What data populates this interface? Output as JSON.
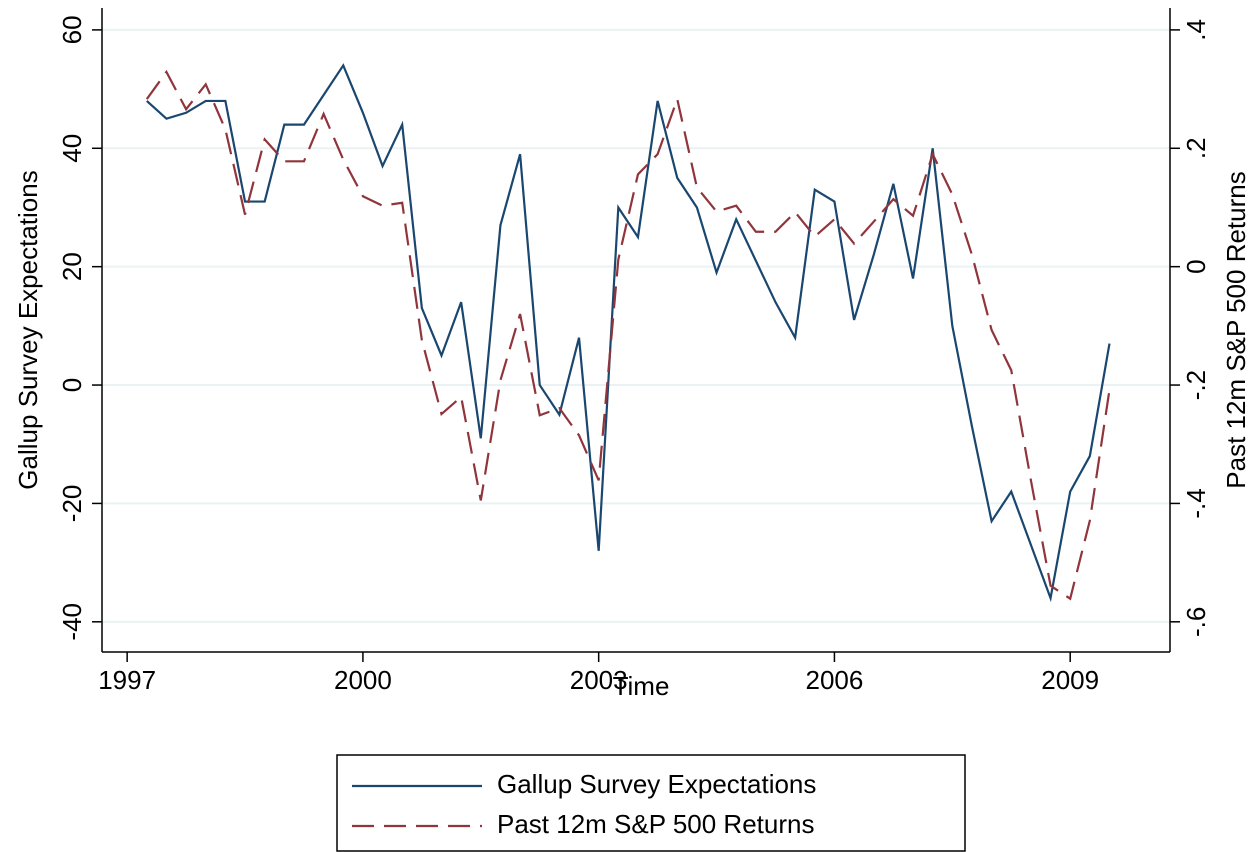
{
  "chart_data": {
    "type": "line",
    "xlabel": "Time",
    "ylabel": "Gallup Survey Expectations",
    "y2label": "Past 12m S&P 500 Returns",
    "x": [
      1997.25,
      1997.5,
      1997.75,
      1998,
      1998.25,
      1998.5,
      1998.75,
      1999,
      1999.25,
      1999.5,
      1999.75,
      2000,
      2000.25,
      2000.5,
      2000.75,
      2001,
      2001.25,
      2001.5,
      2001.75,
      2002,
      2002.25,
      2002.5,
      2002.75,
      2003,
      2003.25,
      2003.5,
      2003.75,
      2004,
      2004.25,
      2004.5,
      2004.75,
      2005,
      2005.25,
      2005.5,
      2005.75,
      2006,
      2006.25,
      2006.5,
      2006.75,
      2007,
      2007.25,
      2007.5,
      2007.75,
      2008,
      2008.25,
      2008.5,
      2008.75,
      2009,
      2009.25,
      2009.5
    ],
    "series": [
      {
        "name": "Gallup Survey Expectations",
        "color": "#1a476f",
        "dash": false,
        "values": [
          48,
          45,
          46,
          48,
          48,
          31,
          31,
          44,
          44,
          49,
          54,
          46,
          37,
          44,
          13,
          5,
          14,
          -9,
          27,
          39,
          0,
          -5,
          8,
          -28,
          30,
          25,
          48,
          35,
          30,
          19,
          28,
          21,
          14,
          8,
          33,
          31,
          11,
          22,
          34,
          18,
          40,
          10,
          -7,
          -23,
          -18,
          -27,
          -36,
          -18,
          -12,
          7
        ]
      },
      {
        "name": "Past 12m S&P 500 Returns",
        "color": "#90353b",
        "dash": true,
        "axis": "y2",
        "values": [
          0.283,
          0.329,
          0.266,
          0.308,
          0.232,
          0.088,
          0.215,
          0.178,
          0.178,
          0.258,
          0.181,
          0.119,
          0.103,
          0.108,
          -0.124,
          -0.249,
          -0.22,
          -0.395,
          -0.192,
          -0.08,
          -0.251,
          -0.239,
          -0.285,
          -0.361,
          0.012,
          0.156,
          0.19,
          0.283,
          0.134,
          0.093,
          0.103,
          0.059,
          0.059,
          0.092,
          0.051,
          0.08,
          0.039,
          0.076,
          0.114,
          0.086,
          0.19,
          0.122,
          0.02,
          -0.107,
          -0.175,
          -0.361,
          -0.539,
          -0.561,
          -0.429,
          -0.208
        ]
      }
    ],
    "xlim": [
      1996.68,
      2010.27
    ],
    "xticks": [
      1997,
      2000,
      2003,
      2006,
      2009
    ],
    "ylim": [
      -45.1,
      63.7
    ],
    "yticks": [
      -40,
      -20,
      0,
      20,
      40,
      60
    ],
    "y2lim": [
      -0.651,
      0.437
    ],
    "y2ticks": [
      {
        "value": -0.6,
        "label": "-.6"
      },
      {
        "value": -0.4,
        "label": "-.4"
      },
      {
        "value": -0.2,
        "label": "-.2"
      },
      0,
      {
        "value": 0.2,
        "label": ".2"
      },
      {
        "value": 0.4,
        "label": ".4"
      }
    ],
    "grid": true,
    "legend": "bottom"
  }
}
